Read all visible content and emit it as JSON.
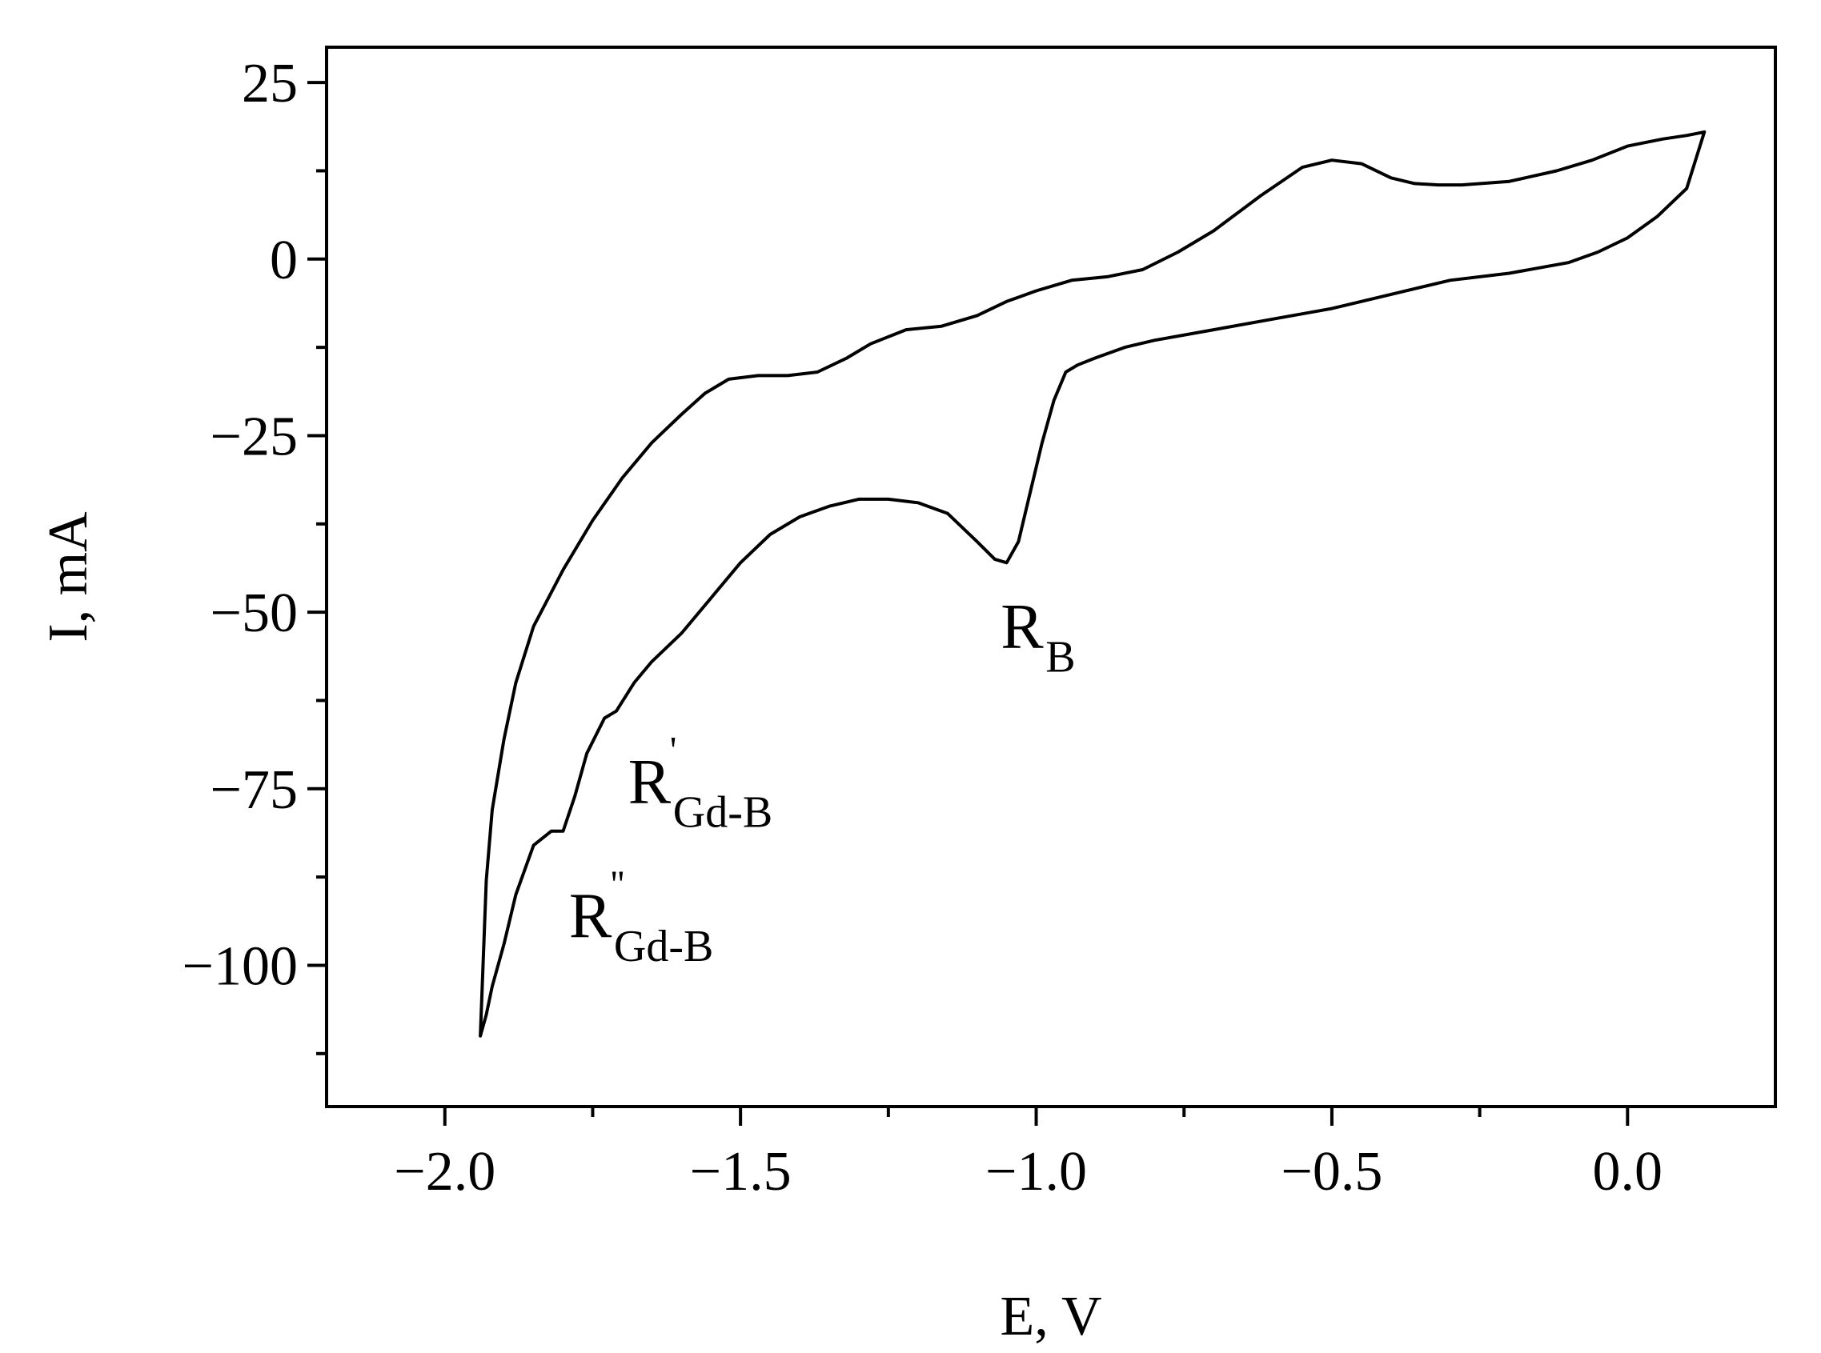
{
  "chart_data": {
    "type": "line",
    "xlabel": "E, V",
    "ylabel": "I, mA",
    "xlim": [
      -2.2,
      0.25
    ],
    "ylim": [
      -120,
      30
    ],
    "x_ticks": [
      {
        "value": -2.0,
        "label": "−2.0"
      },
      {
        "value": -1.5,
        "label": "−1.5"
      },
      {
        "value": -1.0,
        "label": "−1.0"
      },
      {
        "value": -0.5,
        "label": "−0.5"
      },
      {
        "value": 0.0,
        "label": "0.0"
      }
    ],
    "x_minor_ticks": [
      -1.75,
      -1.25,
      -0.75,
      -0.25
    ],
    "y_ticks": [
      {
        "value": 25,
        "label": "25"
      },
      {
        "value": 0,
        "label": "0"
      },
      {
        "value": -25,
        "label": "−25"
      },
      {
        "value": -50,
        "label": "−50"
      },
      {
        "value": -75,
        "label": "−75"
      },
      {
        "value": -100,
        "label": "−100"
      }
    ],
    "y_minor_ticks": [
      12.5,
      -12.5,
      -37.5,
      -62.5,
      -87.5,
      -112.5
    ],
    "grid": false,
    "line_color": "#000000",
    "series": [
      {
        "x": [
          0.13,
          0.1,
          0.06,
          0.0,
          -0.06,
          -0.12,
          -0.2,
          -0.28,
          -0.32,
          -0.36,
          -0.4,
          -0.45,
          -0.5,
          -0.55,
          -0.62,
          -0.7,
          -0.76,
          -0.82,
          -0.88,
          -0.94,
          -1.0,
          -1.05,
          -1.1,
          -1.16,
          -1.22,
          -1.28,
          -1.32,
          -1.37,
          -1.42,
          -1.47,
          -1.52,
          -1.56,
          -1.6,
          -1.65,
          -1.7,
          -1.75,
          -1.8,
          -1.85,
          -1.88,
          -1.9,
          -1.92,
          -1.93,
          -1.94,
          -1.93,
          -1.92,
          -1.9,
          -1.88,
          -1.85,
          -1.82,
          -1.8,
          -1.78,
          -1.76,
          -1.73,
          -1.71,
          -1.68,
          -1.65,
          -1.6,
          -1.55,
          -1.5,
          -1.45,
          -1.4,
          -1.35,
          -1.3,
          -1.25,
          -1.2,
          -1.15,
          -1.1,
          -1.07,
          -1.05,
          -1.03,
          -1.01,
          -0.99,
          -0.97,
          -0.95,
          -0.93,
          -0.9,
          -0.85,
          -0.8,
          -0.7,
          -0.6,
          -0.5,
          -0.4,
          -0.3,
          -0.2,
          -0.1,
          -0.05,
          0.0,
          0.05,
          0.1,
          0.13
        ],
        "y": [
          18,
          17.5,
          17,
          16,
          14,
          12.5,
          11,
          10.5,
          10.5,
          10.7,
          11.5,
          13.5,
          14,
          13,
          9,
          4,
          1,
          -1.5,
          -2.5,
          -3,
          -4.5,
          -6,
          -8,
          -9.5,
          -10,
          -12,
          -14,
          -16,
          -16.5,
          -16.5,
          -17,
          -19,
          -22,
          -26,
          -31,
          -37,
          -44,
          -52,
          -60,
          -68,
          -78,
          -88,
          -110,
          -107,
          -103,
          -97,
          -90,
          -83,
          -81,
          -81,
          -76,
          -70,
          -65,
          -64,
          -60,
          -57,
          -53,
          -48,
          -43,
          -39,
          -36.5,
          -35,
          -34,
          -34,
          -34.5,
          -36,
          -40,
          -42.5,
          -43,
          -40,
          -33,
          -26,
          -20,
          -16,
          -15,
          -14,
          -12.5,
          -11.5,
          -10,
          -8.5,
          -7,
          -5,
          -3,
          -2,
          -0.5,
          1,
          3,
          6,
          10,
          18
        ]
      }
    ],
    "annotations": [
      {
        "text": "R",
        "sub": "B",
        "sup": "",
        "x": -1.06,
        "y": -55
      },
      {
        "text": "R",
        "sub": "Gd-B",
        "sup": "'",
        "x": -1.69,
        "y": -77
      },
      {
        "text": "R",
        "sub": "Gd-B",
        "sup": "''",
        "x": -1.79,
        "y": -96
      }
    ]
  }
}
